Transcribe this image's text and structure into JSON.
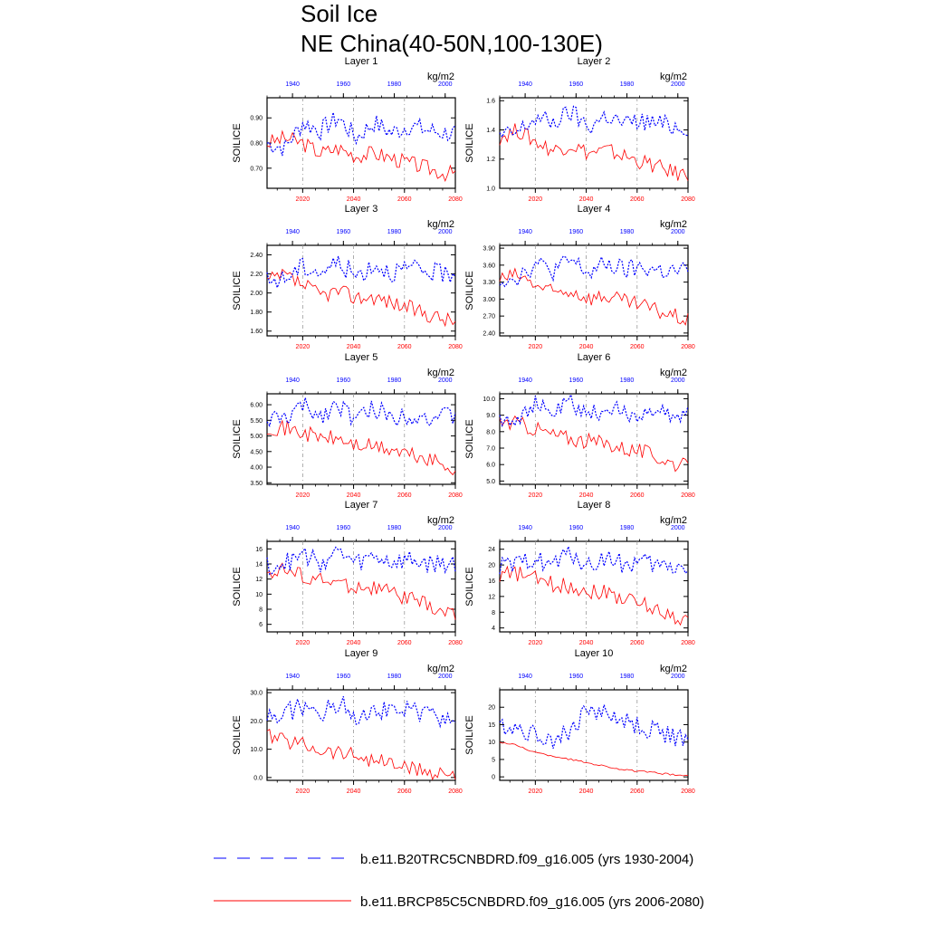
{
  "title": "Soil Ice",
  "subtitle": "NE China(40-50N,100-130E)",
  "legend": [
    {
      "label": "b.e11.B20TRC5CNBDRD.f09_g16.005 (yrs 1930-2004)",
      "color": "#0000ff",
      "style": "dashed"
    },
    {
      "label": "b.e11.BRCP85C5CNBDRD.f09_g16.005 (yrs 2006-2080)",
      "color": "#ff0000",
      "style": "solid"
    }
  ],
  "colors": {
    "historical": "#0000ff",
    "future": "#ff0000",
    "axis": "#000000"
  },
  "chart_data": [
    {
      "type": "line",
      "title": "Layer 1",
      "units": "kg/m2",
      "ylabel": "SOILICE",
      "ylim": [
        0.62,
        0.98
      ],
      "yticks": [
        0.7,
        0.8,
        0.9
      ],
      "ytick_labels": [
        "0.70",
        "0.80",
        "0.90"
      ],
      "top_x_ticks": [
        "1940",
        "1960",
        "1980",
        "2000"
      ],
      "bottom_x_ticks": [
        "2020",
        "2040",
        "2060",
        "2080"
      ],
      "series": [
        {
          "period": "1930-2004",
          "x": [
            1930,
            1937,
            1944,
            1951,
            1958,
            1965,
            1972,
            1979,
            1986,
            1993,
            2000,
            2004
          ],
          "values": [
            0.8,
            0.78,
            0.88,
            0.85,
            0.9,
            0.82,
            0.88,
            0.84,
            0.87,
            0.85,
            0.84,
            0.84
          ]
        },
        {
          "period": "2006-2080",
          "x": [
            2006,
            2013,
            2020,
            2027,
            2034,
            2041,
            2048,
            2055,
            2062,
            2069,
            2076,
            2080
          ],
          "values": [
            0.8,
            0.82,
            0.8,
            0.76,
            0.78,
            0.75,
            0.76,
            0.74,
            0.72,
            0.7,
            0.68,
            0.68
          ]
        }
      ]
    },
    {
      "type": "line",
      "title": "Layer 2",
      "units": "kg/m2",
      "ylabel": "SOILICE",
      "ylim": [
        1.0,
        1.62
      ],
      "yticks": [
        1.0,
        1.2,
        1.4,
        1.6
      ],
      "ytick_labels": [
        "1.0",
        "1.2",
        "1.4",
        "1.6"
      ],
      "top_x_ticks": [
        "1940",
        "1960",
        "1980",
        "2000"
      ],
      "bottom_x_ticks": [
        "2020",
        "2040",
        "2060",
        "2080"
      ],
      "series": [
        {
          "period": "1930-2004",
          "x": [
            1930,
            1937,
            1944,
            1951,
            1958,
            1965,
            1972,
            1979,
            1986,
            1993,
            2000,
            2004
          ],
          "values": [
            1.35,
            1.38,
            1.48,
            1.45,
            1.52,
            1.42,
            1.5,
            1.44,
            1.46,
            1.44,
            1.42,
            1.42
          ]
        },
        {
          "period": "2006-2080",
          "x": [
            2006,
            2013,
            2020,
            2027,
            2034,
            2041,
            2048,
            2055,
            2062,
            2069,
            2076,
            2080
          ],
          "values": [
            1.35,
            1.4,
            1.32,
            1.26,
            1.3,
            1.24,
            1.26,
            1.22,
            1.18,
            1.14,
            1.1,
            1.1
          ]
        }
      ]
    },
    {
      "type": "line",
      "title": "Layer 3",
      "units": "kg/m2",
      "ylabel": "SOILICE",
      "ylim": [
        1.55,
        2.5
      ],
      "yticks": [
        1.6,
        1.8,
        2.0,
        2.2,
        2.4
      ],
      "ytick_labels": [
        "1.60",
        "1.80",
        "2.00",
        "2.20",
        "2.40"
      ],
      "top_x_ticks": [
        "1940",
        "1960",
        "1980",
        "2000"
      ],
      "bottom_x_ticks": [
        "2020",
        "2040",
        "2060",
        "2080"
      ],
      "series": [
        {
          "period": "1930-2004",
          "x": [
            1930,
            1937,
            1944,
            1951,
            1958,
            1965,
            1972,
            1979,
            1986,
            1993,
            2000,
            2004
          ],
          "values": [
            2.12,
            2.15,
            2.28,
            2.22,
            2.32,
            2.18,
            2.3,
            2.22,
            2.25,
            2.22,
            2.2,
            2.22
          ]
        },
        {
          "period": "2006-2080",
          "x": [
            2006,
            2013,
            2020,
            2027,
            2034,
            2041,
            2048,
            2055,
            2062,
            2069,
            2076,
            2080
          ],
          "values": [
            2.12,
            2.18,
            2.08,
            1.98,
            2.02,
            1.95,
            1.96,
            1.9,
            1.84,
            1.78,
            1.72,
            1.7
          ]
        }
      ]
    },
    {
      "type": "line",
      "title": "Layer 4",
      "units": "kg/m2",
      "ylabel": "SOILICE",
      "ylim": [
        2.35,
        3.95
      ],
      "yticks": [
        2.4,
        2.7,
        3.0,
        3.3,
        3.6,
        3.9
      ],
      "ytick_labels": [
        "2.40",
        "2.70",
        "3.00",
        "3.30",
        "3.60",
        "3.90"
      ],
      "top_x_ticks": [
        "1940",
        "1960",
        "1980",
        "2000"
      ],
      "bottom_x_ticks": [
        "2020",
        "2040",
        "2060",
        "2080"
      ],
      "series": [
        {
          "period": "1930-2004",
          "x": [
            1930,
            1937,
            1944,
            1951,
            1958,
            1965,
            1972,
            1979,
            1986,
            1993,
            2000,
            2004
          ],
          "values": [
            3.35,
            3.4,
            3.62,
            3.5,
            3.68,
            3.45,
            3.62,
            3.5,
            3.55,
            3.5,
            3.48,
            3.5
          ]
        },
        {
          "period": "2006-2080",
          "x": [
            2006,
            2013,
            2020,
            2027,
            2034,
            2041,
            2048,
            2055,
            2062,
            2069,
            2076,
            2080
          ],
          "values": [
            3.35,
            3.42,
            3.25,
            3.1,
            3.15,
            3.02,
            3.05,
            2.95,
            2.88,
            2.78,
            2.68,
            2.62
          ]
        }
      ]
    },
    {
      "type": "line",
      "title": "Layer 5",
      "units": "kg/m2",
      "ylabel": "SOILICE",
      "ylim": [
        3.45,
        6.35
      ],
      "yticks": [
        3.5,
        4.0,
        4.5,
        5.0,
        5.5,
        6.0
      ],
      "ytick_labels": [
        "3.50",
        "4.00",
        "4.50",
        "5.00",
        "5.50",
        "6.00"
      ],
      "top_x_ticks": [
        "1940",
        "1960",
        "1980",
        "2000"
      ],
      "bottom_x_ticks": [
        "2020",
        "2040",
        "2060",
        "2080"
      ],
      "series": [
        {
          "period": "1930-2004",
          "x": [
            1930,
            1937,
            1944,
            1951,
            1958,
            1965,
            1972,
            1979,
            1986,
            1993,
            2000,
            2004
          ],
          "values": [
            5.5,
            5.55,
            5.95,
            5.65,
            6.05,
            5.5,
            5.9,
            5.6,
            5.7,
            5.6,
            5.6,
            5.65
          ]
        },
        {
          "period": "2006-2080",
          "x": [
            2006,
            2013,
            2020,
            2027,
            2034,
            2041,
            2048,
            2055,
            2062,
            2069,
            2076,
            2080
          ],
          "values": [
            5.3,
            5.25,
            5.1,
            4.95,
            4.9,
            4.7,
            4.65,
            4.55,
            4.4,
            4.25,
            4.05,
            3.95
          ]
        }
      ]
    },
    {
      "type": "line",
      "title": "Layer 6",
      "units": "kg/m2",
      "ylabel": "SOILICE",
      "ylim": [
        4.8,
        10.3
      ],
      "yticks": [
        5.0,
        6.0,
        7.0,
        8.0,
        9.0,
        10.0
      ],
      "ytick_labels": [
        "5.0",
        "6.0",
        "7.0",
        "8.0",
        "9.0",
        "10.0"
      ],
      "top_x_ticks": [
        "1940",
        "1960",
        "1980",
        "2000"
      ],
      "bottom_x_ticks": [
        "2020",
        "2040",
        "2060",
        "2080"
      ],
      "series": [
        {
          "period": "1930-2004",
          "x": [
            1930,
            1937,
            1944,
            1951,
            1958,
            1965,
            1972,
            1979,
            1986,
            1993,
            2000,
            2004
          ],
          "values": [
            8.8,
            8.9,
            9.6,
            9.1,
            9.8,
            8.9,
            9.5,
            9.0,
            9.2,
            9.0,
            9.0,
            9.1
          ]
        },
        {
          "period": "2006-2080",
          "x": [
            2006,
            2013,
            2020,
            2027,
            2034,
            2041,
            2048,
            2055,
            2062,
            2069,
            2076,
            2080
          ],
          "values": [
            8.6,
            8.5,
            8.2,
            7.8,
            7.6,
            7.4,
            7.3,
            7.0,
            6.8,
            6.4,
            6.0,
            5.8
          ]
        }
      ]
    },
    {
      "type": "line",
      "title": "Layer 7",
      "units": "kg/m2",
      "ylabel": "SOILICE",
      "ylim": [
        5,
        17
      ],
      "yticks": [
        6,
        8,
        10,
        12,
        14,
        16
      ],
      "ytick_labels": [
        "6",
        "8",
        "10",
        "12",
        "14",
        "16"
      ],
      "top_x_ticks": [
        "1940",
        "1960",
        "1980",
        "2000"
      ],
      "bottom_x_ticks": [
        "2020",
        "2040",
        "2060",
        "2080"
      ],
      "series": [
        {
          "period": "1930-2004",
          "x": [
            1930,
            1937,
            1944,
            1951,
            1958,
            1965,
            1972,
            1979,
            1986,
            1993,
            2000,
            2004
          ],
          "values": [
            13.8,
            14.0,
            15.2,
            14.2,
            15.6,
            14.0,
            15.0,
            14.2,
            14.5,
            14.0,
            14.0,
            14.2
          ]
        },
        {
          "period": "2006-2080",
          "x": [
            2006,
            2013,
            2020,
            2027,
            2034,
            2041,
            2048,
            2055,
            2062,
            2069,
            2076,
            2080
          ],
          "values": [
            13.0,
            13.2,
            12.5,
            11.8,
            11.5,
            11.0,
            10.8,
            10.2,
            9.4,
            8.5,
            7.5,
            7.2
          ]
        }
      ]
    },
    {
      "type": "line",
      "title": "Layer 8",
      "units": "kg/m2",
      "ylabel": "SOILICE",
      "ylim": [
        3,
        26
      ],
      "yticks": [
        4,
        8,
        12,
        16,
        20,
        24
      ],
      "ytick_labels": [
        "4",
        "8",
        "12",
        "16",
        "20",
        "24"
      ],
      "top_x_ticks": [
        "1940",
        "1960",
        "1980",
        "2000"
      ],
      "bottom_x_ticks": [
        "2020",
        "2040",
        "2060",
        "2080"
      ],
      "series": [
        {
          "period": "1930-2004",
          "x": [
            1930,
            1937,
            1944,
            1951,
            1958,
            1965,
            1972,
            1979,
            1986,
            1993,
            2000,
            2004
          ],
          "values": [
            19.5,
            19.8,
            22.0,
            20.0,
            23.0,
            19.5,
            22.0,
            20.0,
            20.5,
            19.5,
            19.5,
            19.8
          ]
        },
        {
          "period": "2006-2080",
          "x": [
            2006,
            2013,
            2020,
            2027,
            2034,
            2041,
            2048,
            2055,
            2062,
            2069,
            2076,
            2080
          ],
          "values": [
            17.5,
            17.8,
            16.5,
            15.0,
            14.5,
            13.5,
            13.0,
            11.5,
            10.0,
            8.5,
            6.5,
            6.0
          ]
        }
      ]
    },
    {
      "type": "line",
      "title": "Layer 9",
      "units": "kg/m2",
      "ylabel": "SOILICE",
      "ylim": [
        -1,
        31
      ],
      "yticks": [
        0,
        10,
        20,
        30
      ],
      "ytick_labels": [
        "0.0",
        "10.0",
        "20.0",
        "30.0"
      ],
      "top_x_ticks": [
        "1940",
        "1960",
        "1980",
        "2000"
      ],
      "bottom_x_ticks": [
        "2020",
        "2040",
        "2060",
        "2080"
      ],
      "series": [
        {
          "period": "1930-2004",
          "x": [
            1930,
            1937,
            1944,
            1951,
            1958,
            1965,
            1972,
            1979,
            1986,
            1993,
            2000,
            2004
          ],
          "values": [
            21,
            23,
            25,
            22,
            27,
            22,
            25,
            23,
            24,
            22,
            21,
            20
          ]
        },
        {
          "period": "2006-2080",
          "x": [
            2006,
            2013,
            2020,
            2027,
            2034,
            2041,
            2048,
            2055,
            2062,
            2069,
            2076,
            2080
          ],
          "values": [
            15,
            13,
            12,
            10,
            9,
            8,
            6,
            5,
            3,
            2,
            1.5,
            1.2
          ]
        }
      ]
    },
    {
      "type": "line",
      "title": "Layer 10",
      "units": "kg/m2",
      "ylabel": "SOILICE",
      "ylim": [
        -1,
        25
      ],
      "yticks": [
        0,
        5,
        10,
        15,
        20
      ],
      "ytick_labels": [
        "0",
        "5",
        "10",
        "15",
        "20"
      ],
      "top_x_ticks": [
        "1940",
        "1960",
        "1980",
        "2000"
      ],
      "bottom_x_ticks": [
        "2020",
        "2040",
        "2060",
        "2080"
      ],
      "series": [
        {
          "period": "1930-2004",
          "x": [
            1930,
            1937,
            1944,
            1951,
            1958,
            1965,
            1972,
            1979,
            1986,
            1993,
            2000,
            2004
          ],
          "values": [
            15,
            14,
            12,
            11,
            13,
            20,
            18,
            16,
            14,
            13,
            11,
            10
          ]
        },
        {
          "period": "2006-2080",
          "x": [
            2006,
            2013,
            2020,
            2027,
            2034,
            2041,
            2048,
            2055,
            2062,
            2069,
            2076,
            2080
          ],
          "values": [
            10,
            9,
            7,
            6,
            5,
            4,
            3,
            2,
            1.5,
            1,
            0.5,
            0.4
          ]
        }
      ]
    }
  ]
}
